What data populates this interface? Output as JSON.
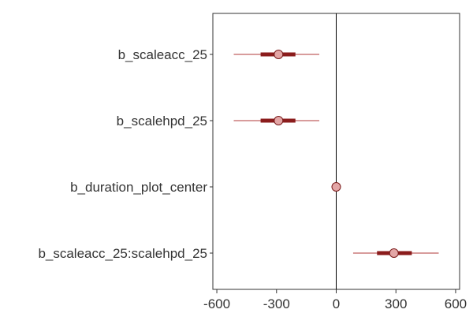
{
  "chart_data": {
    "type": "interval",
    "title": "",
    "xlabel": "",
    "ylabel": "",
    "xlim": [
      -620,
      620
    ],
    "x_ticks": [
      -600,
      -300,
      0,
      300,
      600
    ],
    "x_tick_labels": [
      "-600",
      "-300",
      "0",
      "300",
      "600"
    ],
    "reference_line": 0,
    "grid": false,
    "legend": "none",
    "parameters": [
      {
        "label": "b_scaleacc_25",
        "mean": -290,
        "inner": [
          -380,
          -205
        ],
        "outer": [
          -515,
          -85
        ]
      },
      {
        "label": "b_scalehpd_25",
        "mean": -290,
        "inner": [
          -380,
          -205
        ],
        "outer": [
          -515,
          -85
        ]
      },
      {
        "label": "b_duration_plot_center",
        "mean": 0,
        "inner": [
          -4,
          4
        ],
        "outer": [
          -6,
          6
        ]
      },
      {
        "label": "b_scaleacc_25:scalehpd_25",
        "mean": 290,
        "inner": [
          205,
          380
        ],
        "outer": [
          85,
          515
        ]
      }
    ],
    "colors": {
      "outer_line": "#b03a3a",
      "inner_bar": "#8b1c1c",
      "point_fill": "#e3a6a6",
      "point_stroke": "#7a1a1a",
      "panel_border": "#333333",
      "reference_line": "#000000",
      "text": "#333333"
    }
  }
}
